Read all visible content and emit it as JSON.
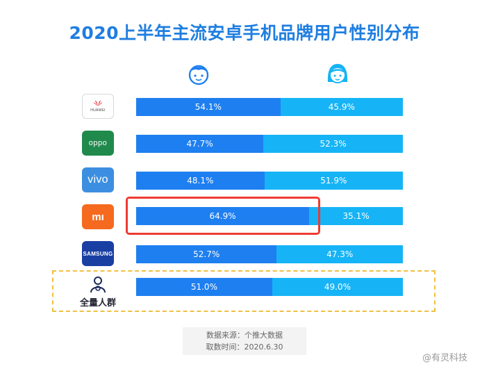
{
  "title": "2020上半年主流安卓手机品牌用户性别分布",
  "source_line": "数据来源：个推大数据",
  "date_line": "取数时间：2020.6.30",
  "watermark": "@有灵科技",
  "brand_labels": {
    "huawei": "HUAWEI",
    "oppo": "oppo",
    "vivo": "vivo",
    "mi": "mı",
    "samsung": "SAMSUNG",
    "all": "全量人群"
  },
  "colors": {
    "male": "#1e7ff0",
    "female": "#16b4f6",
    "highlight": "#ee3b32"
  },
  "chart_data": {
    "type": "bar",
    "stacked": true,
    "orientation": "horizontal",
    "categories": [
      "HUAWEI",
      "OPPO",
      "vivo",
      "Xiaomi",
      "SAMSUNG",
      "全量人群"
    ],
    "series": [
      {
        "values": [
          54.1,
          47.7,
          48.1,
          64.9,
          52.7,
          51.0
        ]
      },
      {
        "values": [
          45.9,
          52.3,
          51.9,
          35.1,
          47.3,
          49.0
        ]
      }
    ],
    "labels_male": [
      "54.1%",
      "47.7%",
      "48.1%",
      "64.9%",
      "52.7%",
      "51.0%"
    ],
    "labels_female": [
      "45.9%",
      "52.3%",
      "51.9%",
      "35.1%",
      "47.3%",
      "49.0%"
    ],
    "legend": "icons above columns: male left, female right",
    "highlighted_category": "Xiaomi"
  }
}
